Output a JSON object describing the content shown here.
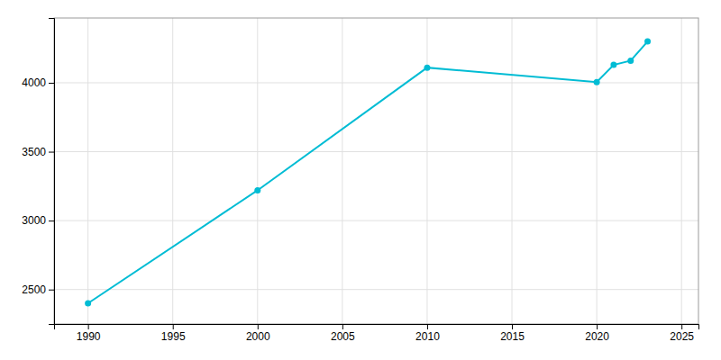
{
  "chart_data": {
    "type": "line",
    "x": [
      1990,
      2000,
      2010,
      2020,
      2021,
      2022,
      2023
    ],
    "values": [
      2400,
      3220,
      4110,
      4005,
      4130,
      4160,
      4300
    ],
    "color": "#00bcd4",
    "marker": "circle",
    "xlim": [
      1988,
      2026
    ],
    "ylim": [
      2250,
      4470
    ],
    "xticks": [
      1990,
      1995,
      2000,
      2005,
      2010,
      2015,
      2020,
      2025
    ],
    "yticks": [
      2500,
      3000,
      3500,
      4000
    ],
    "grid": true
  }
}
